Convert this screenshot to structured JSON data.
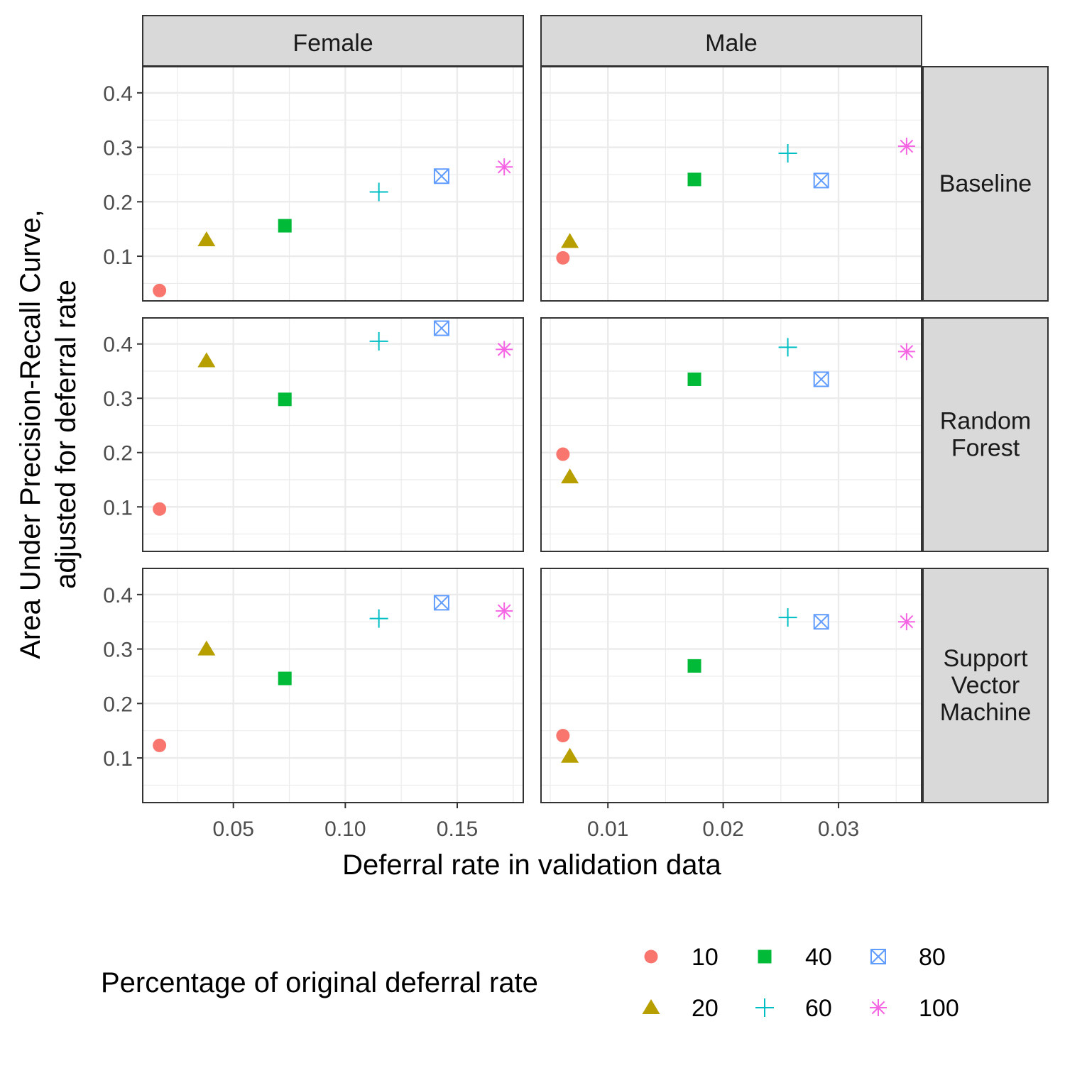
{
  "chart_data": {
    "type": "scatter",
    "facet_cols": [
      "Female",
      "Male"
    ],
    "facet_rows": [
      {
        "key": "baseline",
        "label_lines": [
          "Baseline"
        ]
      },
      {
        "key": "rf",
        "label_lines": [
          "Random",
          "Forest"
        ]
      },
      {
        "key": "svm",
        "label_lines": [
          "Support",
          "Vector",
          "Machine"
        ]
      }
    ],
    "xlabel": "Deferral rate in validation data",
    "ylabel_lines": [
      "Area Under Precision-Recall Curve,",
      "adjusted for deferral rate"
    ],
    "x_axes": {
      "Female": {
        "range": [
          0.0095,
          0.1795
        ],
        "ticks": [
          0.05,
          0.1,
          0.15
        ],
        "tick_labels": [
          "0.05",
          "0.10",
          "0.15"
        ]
      },
      "Male": {
        "range": [
          0.0042,
          0.0372
        ],
        "ticks": [
          0.01,
          0.02,
          0.03
        ],
        "tick_labels": [
          "0.01",
          "0.02",
          "0.03"
        ]
      }
    },
    "y_axis": {
      "range": [
        0.018,
        0.448
      ],
      "ticks": [
        0.1,
        0.2,
        0.3,
        0.4
      ],
      "tick_labels": [
        "0.1",
        "0.2",
        "0.3",
        "0.4"
      ]
    },
    "grid": true,
    "legend": {
      "title": "Percentage of original deferral rate",
      "position": "bottom",
      "levels": [
        "10",
        "20",
        "40",
        "60",
        "80",
        "100"
      ],
      "colors": {
        "10": "#F8766D",
        "20": "#B79F00",
        "40": "#00BA38",
        "60": "#00BFC4",
        "80": "#619CFF",
        "100": "#F564E3"
      },
      "shapes": {
        "10": "circle",
        "20": "triangle",
        "40": "square",
        "60": "plus",
        "80": "square-x",
        "100": "asterisk"
      }
    },
    "x_values": {
      "Female": {
        "10": 0.017,
        "20": 0.038,
        "40": 0.073,
        "60": 0.115,
        "80": 0.143,
        "100": 0.171
      },
      "Male": {
        "10": 0.0061,
        "20": 0.0067,
        "40": 0.0175,
        "60": 0.0256,
        "80": 0.0285,
        "100": 0.0359
      }
    },
    "series": [
      {
        "facet_row": "baseline",
        "facet_col": "Female",
        "values": {
          "10": 0.037,
          "20": 0.13,
          "40": 0.156,
          "60": 0.218,
          "80": 0.247,
          "100": 0.264
        }
      },
      {
        "facet_row": "baseline",
        "facet_col": "Male",
        "values": {
          "10": 0.097,
          "20": 0.127,
          "40": 0.241,
          "60": 0.289,
          "80": 0.239,
          "100": 0.302
        }
      },
      {
        "facet_row": "rf",
        "facet_col": "Female",
        "values": {
          "10": 0.096,
          "20": 0.369,
          "40": 0.298,
          "60": 0.405,
          "80": 0.429,
          "100": 0.39
        }
      },
      {
        "facet_row": "rf",
        "facet_col": "Male",
        "values": {
          "10": 0.197,
          "20": 0.155,
          "40": 0.335,
          "60": 0.394,
          "80": 0.335,
          "100": 0.386
        }
      },
      {
        "facet_row": "svm",
        "facet_col": "Female",
        "values": {
          "10": 0.123,
          "20": 0.3,
          "40": 0.246,
          "60": 0.356,
          "80": 0.385,
          "100": 0.37
        }
      },
      {
        "facet_row": "svm",
        "facet_col": "Male",
        "values": {
          "10": 0.141,
          "20": 0.103,
          "40": 0.269,
          "60": 0.358,
          "80": 0.35,
          "100": 0.35
        }
      }
    ]
  }
}
